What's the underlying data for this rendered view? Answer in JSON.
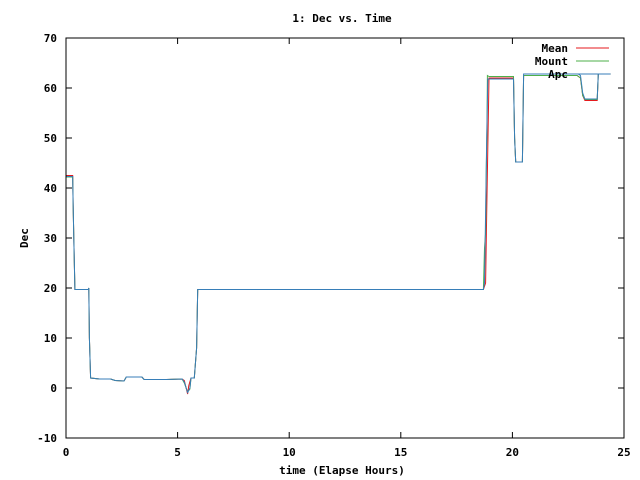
{
  "chart_data": {
    "type": "line",
    "title": "1: Dec vs. Time",
    "xlabel": "time (Elapse Hours)",
    "ylabel": "Dec",
    "xlim": [
      0,
      25
    ],
    "ylim": [
      -10,
      70
    ],
    "x_ticks": [
      "0",
      "5",
      "10",
      "15",
      "20",
      "25"
    ],
    "y_ticks": [
      "-10",
      "0",
      "10",
      "20",
      "30",
      "40",
      "50",
      "60",
      "70"
    ],
    "legend_position": "top-right",
    "grid": false,
    "series": [
      {
        "name": "Mean",
        "color": "#e41a1c",
        "points": [
          [
            0.0,
            42.5
          ],
          [
            0.3,
            42.5
          ],
          [
            0.32,
            37
          ],
          [
            0.35,
            30
          ],
          [
            0.4,
            19.7
          ],
          [
            1.0,
            19.7
          ],
          [
            1.02,
            20
          ],
          [
            1.05,
            10
          ],
          [
            1.1,
            2.0
          ],
          [
            1.5,
            1.8
          ],
          [
            2.0,
            1.8
          ],
          [
            2.2,
            1.5
          ],
          [
            2.6,
            1.4
          ],
          [
            2.7,
            2.2
          ],
          [
            3.4,
            2.2
          ],
          [
            3.5,
            1.7
          ],
          [
            4.5,
            1.7
          ],
          [
            5.2,
            1.8
          ],
          [
            5.3,
            1.5
          ],
          [
            5.45,
            -1.2
          ],
          [
            5.5,
            0.5
          ],
          [
            5.6,
            2.0
          ],
          [
            5.75,
            2.0
          ],
          [
            5.85,
            8
          ],
          [
            5.9,
            19.7
          ],
          [
            17.6,
            19.7
          ],
          [
            18.7,
            19.7
          ],
          [
            18.8,
            21
          ],
          [
            18.85,
            35
          ],
          [
            18.95,
            62.0
          ],
          [
            20.05,
            62.0
          ],
          [
            20.1,
            50
          ],
          [
            20.15,
            45.2
          ],
          [
            20.45,
            45.2
          ],
          [
            20.5,
            62.5
          ],
          [
            22.9,
            62.5
          ],
          [
            23.05,
            62.0
          ],
          [
            23.15,
            58.5
          ],
          [
            23.25,
            57.5
          ],
          [
            23.8,
            57.5
          ],
          [
            23.85,
            62.8
          ],
          [
            24.4,
            62.8
          ]
        ]
      },
      {
        "name": "Mount",
        "color": "#4daf4a",
        "points": [
          [
            0.0,
            42.2
          ],
          [
            0.3,
            42.2
          ],
          [
            0.32,
            37
          ],
          [
            0.35,
            30
          ],
          [
            0.4,
            19.7
          ],
          [
            1.0,
            19.7
          ],
          [
            1.02,
            20
          ],
          [
            1.05,
            10
          ],
          [
            1.1,
            2.0
          ],
          [
            1.5,
            1.8
          ],
          [
            2.0,
            1.8
          ],
          [
            2.2,
            1.5
          ],
          [
            2.6,
            1.4
          ],
          [
            2.7,
            2.2
          ],
          [
            3.4,
            2.2
          ],
          [
            3.5,
            1.7
          ],
          [
            4.5,
            1.7
          ],
          [
            5.2,
            1.8
          ],
          [
            5.3,
            1.0
          ],
          [
            5.45,
            -0.8
          ],
          [
            5.55,
            -0.2
          ],
          [
            5.6,
            2.0
          ],
          [
            5.75,
            2.0
          ],
          [
            5.85,
            8
          ],
          [
            5.9,
            19.7
          ],
          [
            18.7,
            19.7
          ],
          [
            18.75,
            28
          ],
          [
            18.8,
            31
          ],
          [
            18.83,
            44
          ],
          [
            18.86,
            52
          ],
          [
            18.88,
            62.5
          ],
          [
            18.95,
            62.3
          ],
          [
            20.05,
            62.3
          ],
          [
            20.1,
            50
          ],
          [
            20.15,
            45.2
          ],
          [
            20.45,
            45.2
          ],
          [
            20.5,
            62.5
          ],
          [
            22.9,
            62.5
          ],
          [
            23.05,
            62.0
          ],
          [
            23.15,
            58.5
          ],
          [
            23.25,
            57.7
          ],
          [
            23.8,
            57.7
          ],
          [
            23.85,
            62.8
          ],
          [
            24.4,
            62.8
          ]
        ]
      },
      {
        "name": "Apc",
        "color": "#377eb8",
        "points": [
          [
            0.0,
            42.3
          ],
          [
            0.3,
            42.3
          ],
          [
            0.32,
            37
          ],
          [
            0.35,
            30
          ],
          [
            0.4,
            19.7
          ],
          [
            1.0,
            19.7
          ],
          [
            1.02,
            20
          ],
          [
            1.05,
            10
          ],
          [
            1.1,
            2.0
          ],
          [
            1.5,
            1.8
          ],
          [
            2.0,
            1.8
          ],
          [
            2.2,
            1.5
          ],
          [
            2.6,
            1.4
          ],
          [
            2.7,
            2.2
          ],
          [
            3.4,
            2.2
          ],
          [
            3.5,
            1.7
          ],
          [
            4.5,
            1.7
          ],
          [
            5.2,
            1.8
          ],
          [
            5.3,
            1.2
          ],
          [
            5.45,
            -0.9
          ],
          [
            5.55,
            0.0
          ],
          [
            5.6,
            2.0
          ],
          [
            5.75,
            2.0
          ],
          [
            5.85,
            8
          ],
          [
            5.9,
            19.7
          ],
          [
            18.7,
            19.7
          ],
          [
            18.75,
            21
          ],
          [
            18.8,
            35
          ],
          [
            18.85,
            50
          ],
          [
            18.9,
            61.8
          ],
          [
            20.05,
            61.8
          ],
          [
            20.1,
            50
          ],
          [
            20.15,
            45.2
          ],
          [
            20.45,
            45.2
          ],
          [
            20.5,
            62.8
          ],
          [
            22.95,
            62.8
          ],
          [
            23.05,
            62.5
          ],
          [
            23.15,
            59
          ],
          [
            23.25,
            57.8
          ],
          [
            23.8,
            57.8
          ],
          [
            23.85,
            62.8
          ],
          [
            24.4,
            62.8
          ]
        ]
      }
    ]
  }
}
